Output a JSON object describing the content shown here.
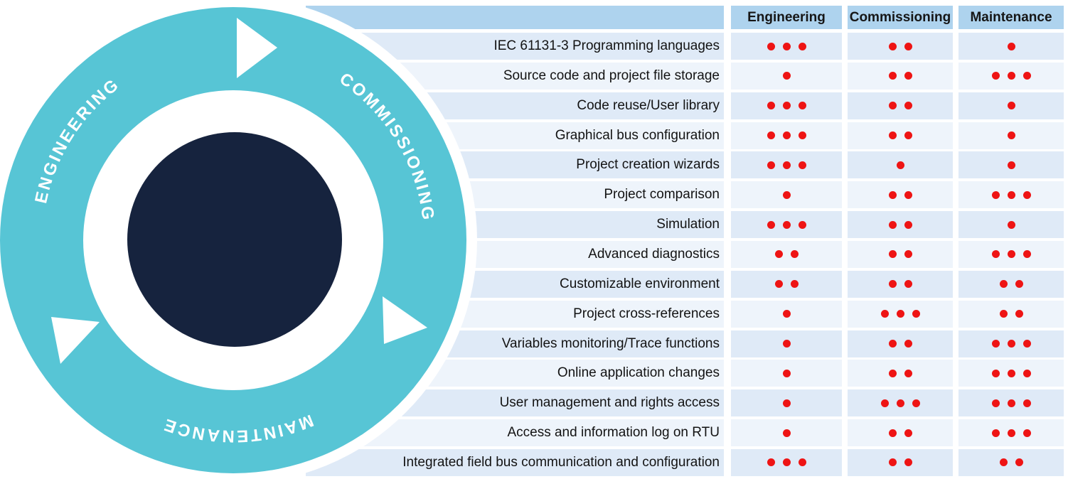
{
  "diagram": {
    "ring_labels": {
      "engineering": "ENGINEERING",
      "commissioning": "COMMISSIONING",
      "maintenance": "MAINTENANCE"
    },
    "colors": {
      "ring": "#57c5d5",
      "center": "#16233e",
      "label_text": "#ffffff",
      "arrow": "#ffffff"
    }
  },
  "table": {
    "columns": [
      "Engineering",
      "Commissioning",
      "Maintenance"
    ],
    "colors": {
      "header_bg": "#aed3ee",
      "row_odd": "#dfeaf7",
      "row_even": "#eef4fb",
      "dot": "#ee1414",
      "text": "#131313"
    },
    "rows": [
      {
        "label": "IEC 61131-3 Programming languages",
        "ratings": [
          3,
          2,
          1
        ]
      },
      {
        "label": "Source code and project file storage",
        "ratings": [
          1,
          2,
          3
        ]
      },
      {
        "label": "Code reuse/User library",
        "ratings": [
          3,
          2,
          1
        ]
      },
      {
        "label": "Graphical bus configuration",
        "ratings": [
          3,
          2,
          1
        ]
      },
      {
        "label": "Project creation wizards",
        "ratings": [
          3,
          1,
          1
        ]
      },
      {
        "label": "Project comparison",
        "ratings": [
          1,
          2,
          3
        ]
      },
      {
        "label": "Simulation",
        "ratings": [
          3,
          2,
          1
        ]
      },
      {
        "label": "Advanced diagnostics",
        "ratings": [
          2,
          2,
          3
        ]
      },
      {
        "label": "Customizable environment",
        "ratings": [
          2,
          2,
          2
        ]
      },
      {
        "label": "Project cross-references",
        "ratings": [
          1,
          3,
          2
        ]
      },
      {
        "label": "Variables monitoring/Trace functions",
        "ratings": [
          1,
          2,
          3
        ]
      },
      {
        "label": "Online application changes",
        "ratings": [
          1,
          2,
          3
        ]
      },
      {
        "label": "User management and rights access",
        "ratings": [
          1,
          3,
          3
        ]
      },
      {
        "label": "Access and information log on RTU",
        "ratings": [
          1,
          2,
          3
        ]
      },
      {
        "label": "Integrated field bus communication and configuration",
        "ratings": [
          3,
          2,
          2
        ]
      }
    ]
  }
}
